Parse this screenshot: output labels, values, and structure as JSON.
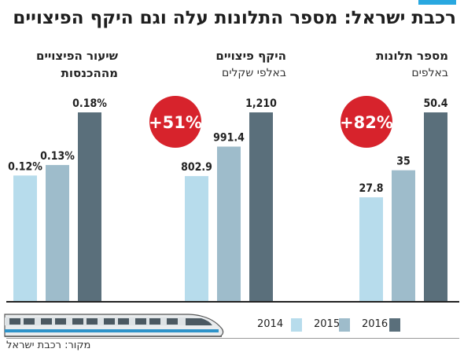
{
  "title": "רכבת ישראל: מספר התלונות עלה וגם היקף הפיצויים",
  "source": "מקור: רכבת ישראל",
  "colors": {
    "2014": "#b7dcec",
    "2015": "#9ebccb",
    "2016": "#5a6f7b",
    "badge": "#d7232c",
    "accent": "#29a8e0"
  },
  "chart_data": [
    {
      "type": "bar",
      "title": "מספר תלונות",
      "subtitle": "באלפים",
      "categories": [
        "2014",
        "2015",
        "2016"
      ],
      "values": [
        27.8,
        35,
        50.4
      ],
      "labels": [
        "27.8",
        "35",
        "50.4"
      ],
      "change_badge": "+82%"
    },
    {
      "type": "bar",
      "title": "היקף פיצויים",
      "subtitle": "באלפי שקלים",
      "categories": [
        "2014",
        "2015",
        "2016"
      ],
      "values": [
        802.9,
        991.4,
        1210
      ],
      "labels": [
        "802.9",
        "991.4",
        "1,210"
      ],
      "change_badge": "+51%"
    },
    {
      "type": "bar",
      "title": "שיעור הפיצויים",
      "subtitle": "מההכנסות",
      "categories": [
        "2014",
        "2015",
        "2016"
      ],
      "values": [
        0.12,
        0.13,
        0.18
      ],
      "labels": [
        "0.12%",
        "0.13%",
        "0.18%"
      ]
    }
  ],
  "legend": [
    "2014",
    "2015",
    "2016"
  ]
}
